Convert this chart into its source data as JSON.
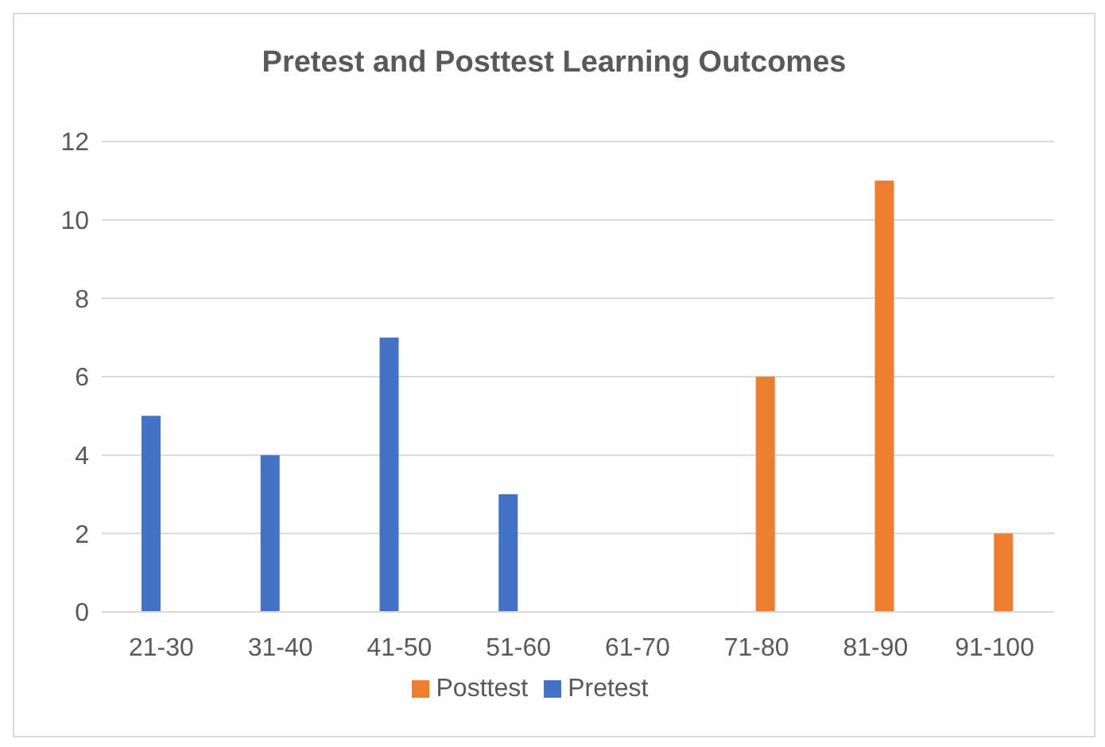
{
  "chart_data": {
    "type": "bar",
    "title": "Pretest and Posttest Learning Outcomes",
    "categories": [
      "21-30",
      "31-40",
      "41-50",
      "51-60",
      "61-70",
      "71-80",
      "81-90",
      "91-100"
    ],
    "series": [
      {
        "name": "Pretest",
        "color": "#4472c4",
        "values": [
          5,
          4,
          7,
          3,
          null,
          null,
          null,
          null
        ]
      },
      {
        "name": "Posttest",
        "color": "#ed7d31",
        "values": [
          null,
          null,
          null,
          null,
          null,
          6,
          11,
          2
        ]
      }
    ],
    "ylim": [
      0,
      12
    ],
    "yticks": [
      0,
      2,
      4,
      6,
      8,
      10,
      12
    ],
    "grid": "y",
    "legend": "bottom"
  }
}
